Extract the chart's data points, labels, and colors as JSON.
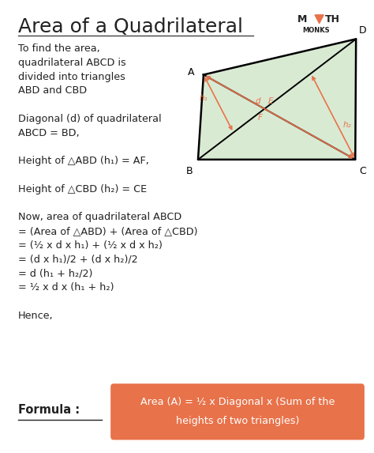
{
  "title": "Area of a Quadrilateral",
  "bg_color": "#ffffff",
  "title_color": "#222222",
  "title_fontsize": 18,
  "orange_color": "#E8724A",
  "green_fill": "#d9ead3",
  "text_lines": [
    "To find the area,",
    "quadrilateral ABCD is",
    "divided into triangles",
    "ABD and CBD",
    " ",
    "Diagonal (d) of quadrilateral",
    "ABCD = BD,",
    " ",
    "Height of △ABD (h₁) = AF,",
    " ",
    "Height of △CBD (h₂) = CE",
    " ",
    "Now, area of quadrilateral ABCD",
    "= (Area of △ABD) + (Area of △CBD)",
    "= (½ x d x h₁) + (½ x d x h₂)",
    "= (d x h₁)/2 + (d x h₂)/2",
    "= d (h₁ + h₂/2)",
    "= ½ x d x (h₁ + h₂)",
    " ",
    "Hence,"
  ],
  "formula_text_line1": "Area (A) = ½ x Diagonal x (Sum of the",
  "formula_text_line2": "heights of two triangles)",
  "formula_label": "Formula :"
}
